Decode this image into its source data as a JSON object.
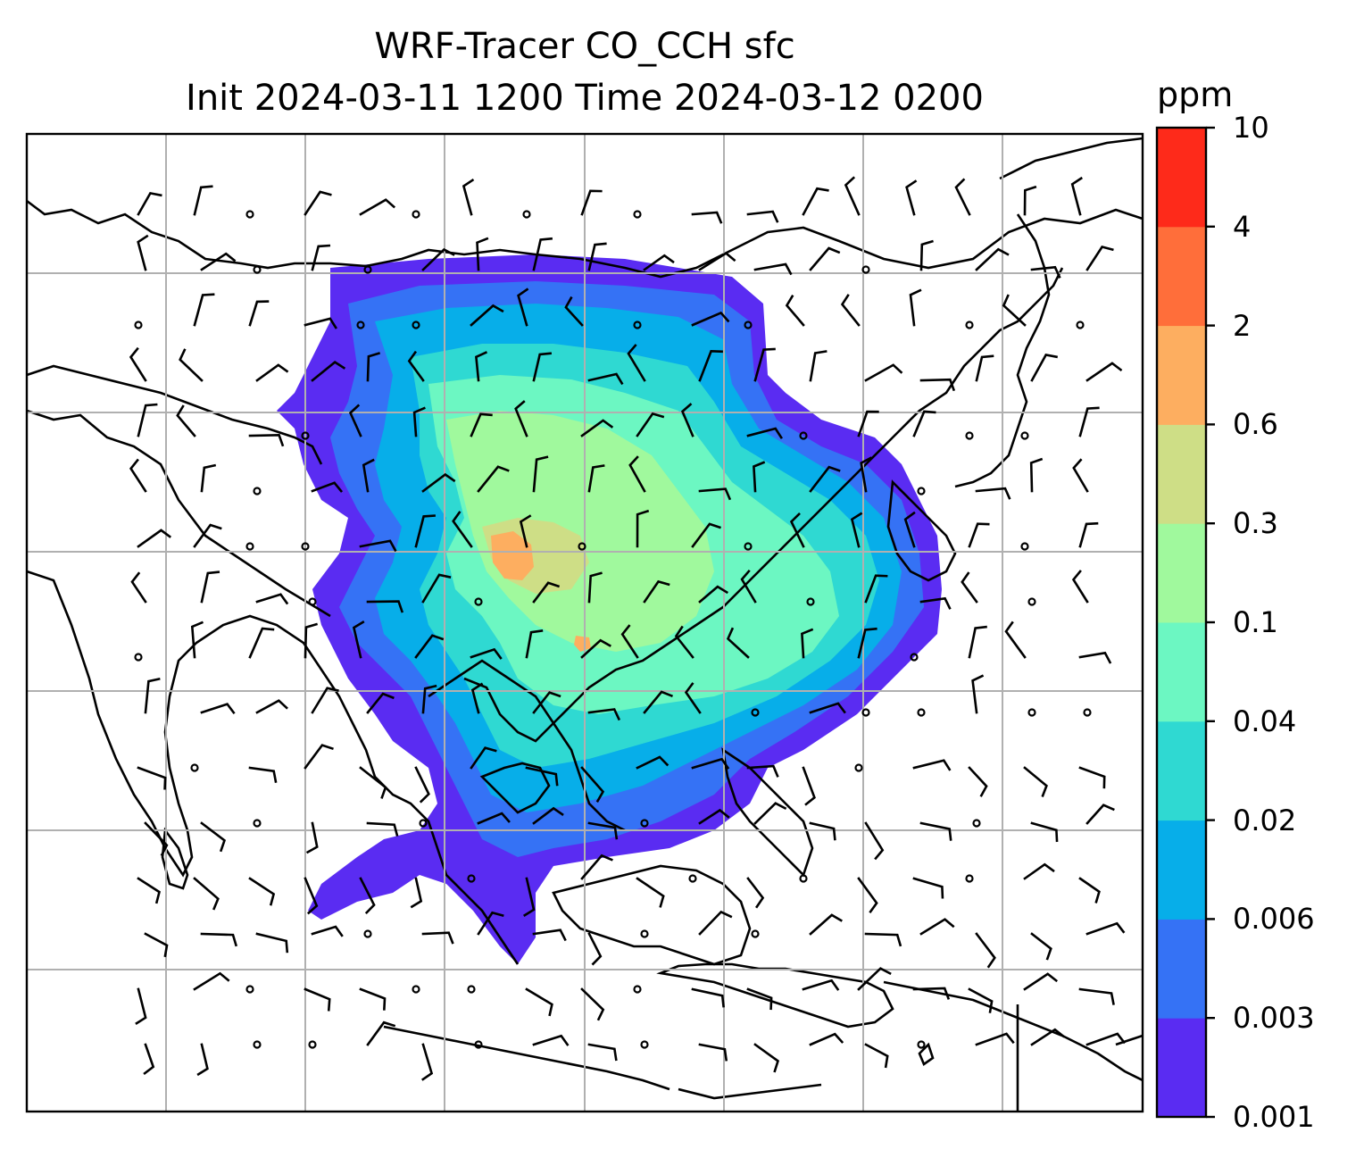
{
  "title": {
    "line1": "WRF-Tracer CO_CCH sfc",
    "line2": "Init 2024-03-11 1200 Time 2024-03-12 0200"
  },
  "colorbar": {
    "unit": "ppm",
    "levels": [
      "0.001",
      "0.003",
      "0.006",
      "0.02",
      "0.04",
      "0.1",
      "0.3",
      "0.6",
      "2",
      "4",
      "10"
    ],
    "colors": [
      "#5a2cf2",
      "#3572f5",
      "#07aee9",
      "#2fd9d2",
      "#6cf7c2",
      "#a0f99d",
      "#cede86",
      "#fdae60",
      "#ff6e3a",
      "#fe2a1a"
    ]
  },
  "map": {
    "gridlines": true,
    "coastlines": true,
    "wind_barbs": true,
    "calm_wind_marker": "circle"
  }
}
